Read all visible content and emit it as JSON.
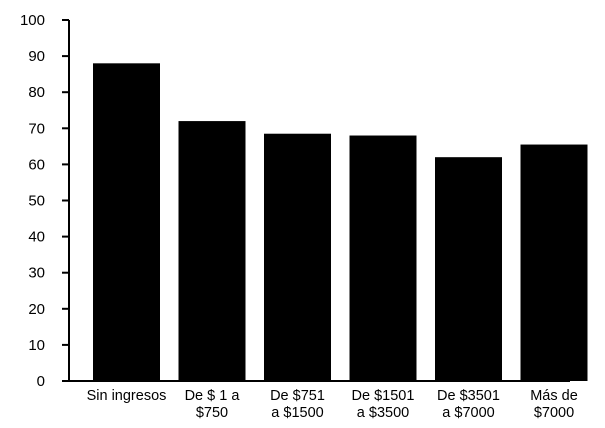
{
  "chart_data": {
    "type": "bar",
    "categories": [
      [
        "Sin ingresos"
      ],
      [
        "De $ 1 a",
        "$750"
      ],
      [
        "De $751",
        "a $1500"
      ],
      [
        "De $1501",
        "a $3500"
      ],
      [
        "De $3501",
        "a $7000"
      ],
      [
        "Más de",
        "$7000"
      ]
    ],
    "values": [
      88,
      72,
      68.5,
      68,
      62,
      65.5
    ],
    "title": "",
    "xlabel": "",
    "ylabel": "",
    "ylim": [
      0,
      100
    ],
    "yticks": [
      "0",
      "10",
      "20",
      "30",
      "40",
      "50",
      "60",
      "70",
      "80",
      "90",
      "100"
    ],
    "grid": false,
    "bar_color": "#000000"
  }
}
